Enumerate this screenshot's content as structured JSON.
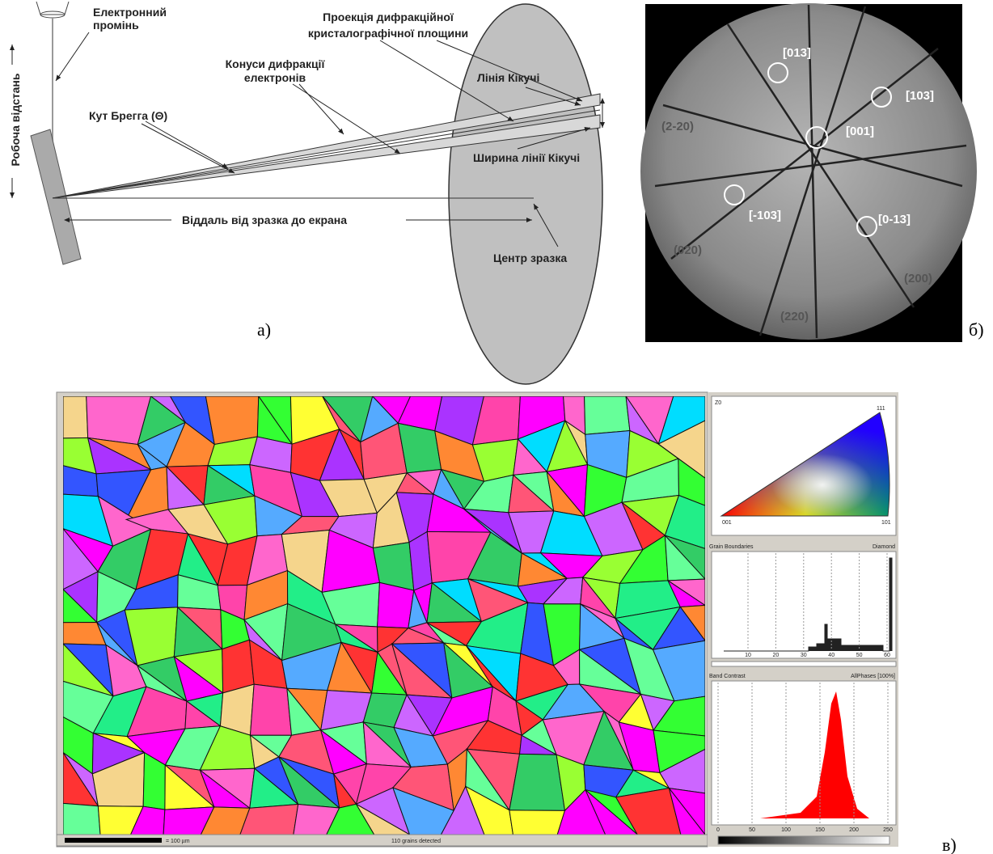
{
  "panel_a": {
    "label": "а)",
    "beam": [
      "Електронний",
      "промінь"
    ],
    "working_distance": "Робоча відстань",
    "projection": [
      "Проекція дифракційної",
      "кристалографічної площини"
    ],
    "cones": [
      "Конуси дифракції",
      "електронів"
    ],
    "kikuchi_line": "Лінія Кікучі",
    "bragg_angle": "Кут Брегга (Θ)",
    "kikuchi_width": "Ширина лінії Кікучі",
    "distance": "Віддаль від зразка до екрана",
    "sample_center": "Центр зразка"
  },
  "panel_b": {
    "label": "б)",
    "zones": [
      "[013]",
      "[103]",
      "[001]",
      "[-103]",
      "[0-13]"
    ],
    "planes": [
      "(2-20)",
      "(020)",
      "(200)",
      "(220)"
    ]
  },
  "panel_c": {
    "label": "в)",
    "ipf": {
      "title": "Z0",
      "corners": [
        "111",
        "001",
        "101"
      ]
    },
    "grain_boundaries": {
      "title": "Grain Boundaries",
      "phase": "Diamond",
      "ticks": [
        10,
        20,
        30,
        40,
        50,
        60
      ]
    },
    "band_contrast": {
      "title": "Band Contrast",
      "phase": "AllPhases [100%]",
      "ticks": [
        0,
        50,
        100,
        150,
        200,
        250
      ]
    },
    "scale": "= 100 µm",
    "status": "110 grains detected"
  }
}
